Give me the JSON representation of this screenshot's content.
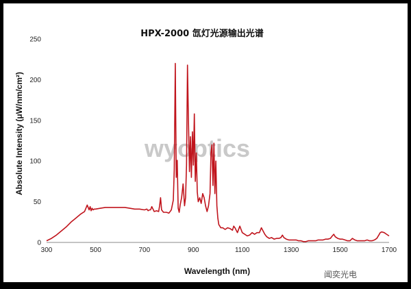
{
  "chart_data": {
    "type": "line",
    "title": "HPX-2000 氙灯光源输出光谱",
    "xlabel": "Wavelength (nm)",
    "ylabel": "Absolute Intensity  (μW/nm/cm²)",
    "xlim": [
      300,
      1700
    ],
    "ylim": [
      0,
      250
    ],
    "x_ticks": [
      300,
      500,
      700,
      900,
      1100,
      1300,
      1500,
      1700
    ],
    "y_ticks": [
      0,
      50,
      100,
      150,
      200,
      250
    ],
    "grid": false,
    "series": [
      {
        "color": "#c0141c",
        "x": [
          300,
          320,
          340,
          360,
          380,
          400,
          420,
          440,
          455,
          462,
          466,
          470,
          474,
          478,
          482,
          486,
          490,
          495,
          500,
          520,
          540,
          560,
          580,
          600,
          620,
          640,
          660,
          680,
          700,
          710,
          715,
          720,
          725,
          730,
          740,
          750,
          758,
          762,
          766,
          770,
          778,
          790,
          800,
          810,
          818,
          822,
          826,
          830,
          834,
          838,
          842,
          846,
          852,
          858,
          864,
          868,
          872,
          876,
          880,
          884,
          888,
          892,
          896,
          900,
          904,
          908,
          912,
          916,
          920,
          926,
          932,
          938,
          944,
          950,
          956,
          962,
          968,
          972,
          976,
          980,
          984,
          988,
          992,
          996,
          1000,
          1004,
          1008,
          1012,
          1020,
          1030,
          1040,
          1050,
          1060,
          1065,
          1070,
          1080,
          1090,
          1095,
          1100,
          1110,
          1120,
          1130,
          1140,
          1150,
          1160,
          1170,
          1178,
          1185,
          1192,
          1200,
          1210,
          1220,
          1230,
          1240,
          1250,
          1258,
          1264,
          1270,
          1280,
          1290,
          1300,
          1310,
          1320,
          1330,
          1340,
          1350,
          1360,
          1370,
          1380,
          1390,
          1400,
          1410,
          1420,
          1430,
          1440,
          1450,
          1460,
          1468,
          1474,
          1480,
          1490,
          1500,
          1510,
          1520,
          1530,
          1540,
          1550,
          1560,
          1570,
          1580,
          1590,
          1600,
          1610,
          1620,
          1630,
          1640,
          1650,
          1658,
          1664,
          1670,
          1680,
          1690,
          1700
        ],
        "y": [
          2,
          5,
          9,
          14,
          19,
          25,
          30,
          35,
          38,
          43,
          46,
          43,
          40,
          44,
          39,
          42,
          40,
          41,
          41,
          42,
          43,
          43,
          43,
          43,
          43,
          42,
          41,
          41,
          40,
          41,
          39,
          40,
          40,
          44,
          38,
          39,
          38,
          45,
          55,
          40,
          37,
          37,
          36,
          40,
          52,
          90,
          220,
          80,
          101,
          42,
          37,
          46,
          55,
          72,
          45,
          55,
          95,
          218,
          150,
          87,
          130,
          80,
          136,
          95,
          158,
          75,
          110,
          62,
          50,
          55,
          48,
          60,
          55,
          45,
          38,
          45,
          60,
          110,
          120,
          70,
          122,
          60,
          100,
          45,
          30,
          22,
          20,
          18,
          18,
          16,
          18,
          17,
          15,
          20,
          18,
          12,
          20,
          16,
          12,
          10,
          8,
          9,
          12,
          10,
          12,
          12,
          18,
          14,
          10,
          7,
          5,
          6,
          4,
          5,
          5,
          6,
          9,
          6,
          4,
          3,
          3,
          3,
          3,
          2,
          2,
          1,
          1,
          2,
          2,
          2,
          2,
          3,
          3,
          3,
          4,
          4,
          5,
          8,
          10,
          7,
          5,
          4,
          4,
          3,
          2,
          2,
          5,
          3,
          2,
          2,
          2,
          2,
          3,
          2,
          2,
          3,
          5,
          9,
          12,
          13,
          12,
          10,
          8
        ]
      }
    ]
  },
  "watermark": "wyoptics",
  "brand": "闻奕光电"
}
